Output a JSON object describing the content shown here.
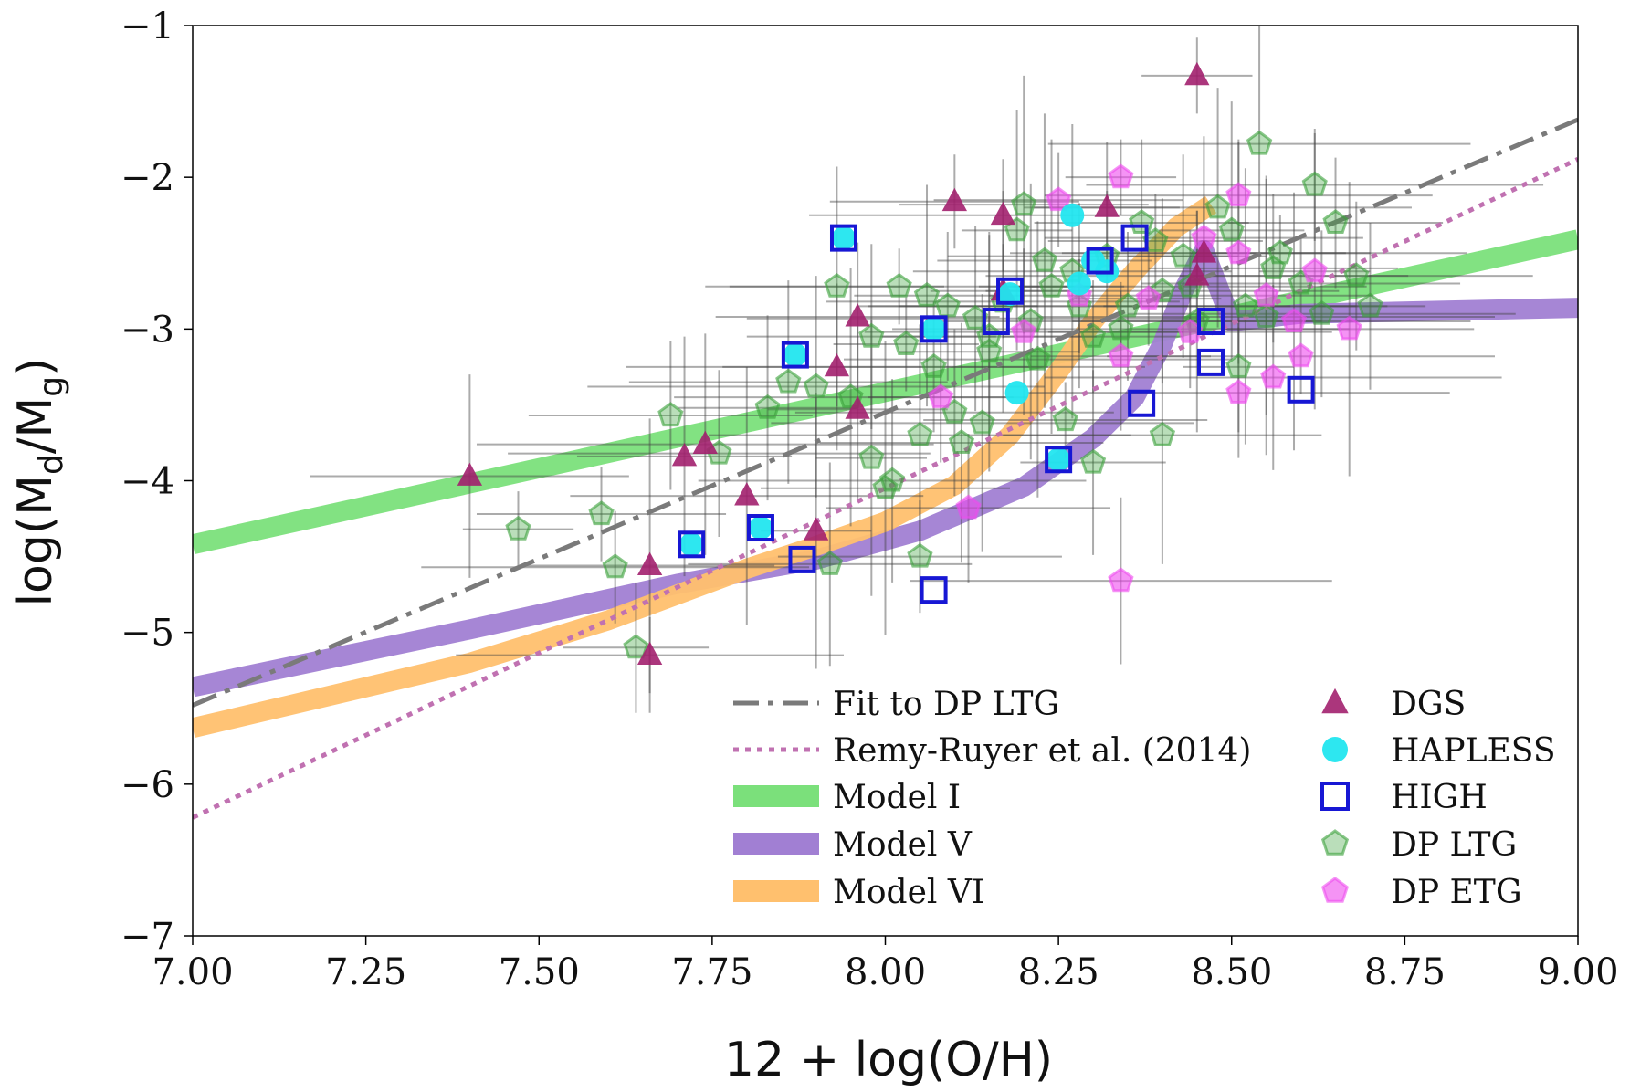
{
  "chart_data": {
    "type": "scatter",
    "title": "",
    "xlabel": "12 + log(O/H)",
    "ylabel": "log(M_d/M_g)",
    "xlabel_text": "12 + log(O/H)",
    "ylabel_main": "log(M",
    "ylabel_sub_d": "d",
    "ylabel_mid": "/M",
    "ylabel_sub_g": "g",
    "ylabel_close": ")",
    "xlim": [
      7.0,
      9.0
    ],
    "ylim": [
      -7.0,
      -1.0
    ],
    "xticks": [
      7.0,
      7.25,
      7.5,
      7.75,
      8.0,
      8.25,
      8.5,
      8.75,
      9.0
    ],
    "xtick_labels": [
      "7.00",
      "7.25",
      "7.50",
      "7.75",
      "8.00",
      "8.25",
      "8.50",
      "8.75",
      "9.00"
    ],
    "yticks": [
      -1,
      -2,
      -3,
      -4,
      -5,
      -6,
      -7
    ],
    "ytick_labels": [
      "−1",
      "−2",
      "−3",
      "−4",
      "−5",
      "−6",
      "−7"
    ],
    "grid": false,
    "legend_position": "lower-right",
    "lines": [
      {
        "name": "Fit to DP LTG",
        "style": "dashdot",
        "color": "#7a7a7a",
        "x": [
          7.0,
          9.0
        ],
        "y": [
          -5.48,
          -1.62
        ]
      },
      {
        "name": "Remy-Ruyer et al. (2014)",
        "style": "dotted",
        "color": "#c071b1",
        "x": [
          7.0,
          9.0
        ],
        "y": [
          -6.22,
          -1.88
        ]
      }
    ],
    "bands": [
      {
        "name": "Model I",
        "color": "#7be07b",
        "x": [
          7.0,
          9.0
        ],
        "y": [
          -4.42,
          -2.41
        ]
      },
      {
        "name": "Model V",
        "color": "#a17fd3",
        "x": [
          7.0,
          7.4,
          7.7,
          7.9,
          8.05,
          8.2,
          8.3,
          8.36,
          8.4,
          8.43,
          8.46,
          8.5,
          8.6,
          8.8,
          9.0
        ],
        "y": [
          -5.36,
          -4.98,
          -4.68,
          -4.52,
          -4.33,
          -4.04,
          -3.72,
          -3.45,
          -3.1,
          -2.75,
          -2.48,
          -2.95,
          -2.9,
          -2.88,
          -2.86
        ]
      },
      {
        "name": "Model VI",
        "color": "#ffc06e",
        "x": [
          7.0,
          7.4,
          7.6,
          7.8,
          7.9,
          8.0,
          8.1,
          8.18,
          8.25,
          8.3,
          8.36,
          8.42,
          8.47
        ],
        "y": [
          -5.63,
          -5.2,
          -4.92,
          -4.58,
          -4.43,
          -4.27,
          -4.03,
          -3.7,
          -3.28,
          -2.95,
          -2.62,
          -2.33,
          -2.18
        ]
      }
    ],
    "series": [
      {
        "name": "DGS",
        "marker": "triangle",
        "color": "#a2206e",
        "x": [
          8.45,
          8.1,
          8.17,
          8.32,
          7.96,
          7.93,
          7.96,
          7.4,
          7.74,
          7.71,
          7.8,
          7.9,
          7.66,
          7.66,
          8.17,
          8.46,
          8.45
        ],
        "y": [
          -1.33,
          -2.16,
          -2.25,
          -2.2,
          -2.92,
          -3.25,
          -3.53,
          -3.97,
          -3.76,
          -3.84,
          -4.1,
          -4.33,
          -4.56,
          -5.15,
          -2.75,
          -2.5,
          -2.65
        ]
      },
      {
        "name": "HAPLESS",
        "marker": "circle",
        "color": "#22e6ef",
        "x": [
          7.94,
          7.87,
          8.07,
          7.72,
          7.82,
          8.18,
          8.19,
          8.27,
          8.3,
          8.32,
          8.25,
          8.28
        ],
        "y": [
          -2.4,
          -3.17,
          -3.0,
          -4.42,
          -4.31,
          -2.77,
          -3.42,
          -2.25,
          -2.55,
          -2.62,
          -3.86,
          -2.7
        ]
      },
      {
        "name": "HIGH",
        "marker": "square",
        "color": "#1717d4",
        "x": [
          7.94,
          7.87,
          8.07,
          7.72,
          7.82,
          7.88,
          8.07,
          8.18,
          8.16,
          8.25,
          8.31,
          8.36,
          8.37,
          8.47,
          8.47,
          8.6
        ],
        "y": [
          -2.4,
          -3.17,
          -3.0,
          -4.42,
          -4.31,
          -4.52,
          -4.72,
          -2.75,
          -2.95,
          -3.86,
          -2.55,
          -2.4,
          -3.49,
          -2.95,
          -3.22,
          -3.4
        ]
      },
      {
        "name": "DP LTG",
        "marker": "pentagon",
        "color": "#3aa03a",
        "x": [
          7.47,
          7.59,
          7.61,
          7.64,
          7.69,
          7.76,
          7.83,
          7.86,
          7.9,
          7.93,
          7.95,
          7.98,
          8.0,
          8.02,
          8.03,
          8.05,
          8.07,
          8.09,
          8.1,
          8.13,
          8.15,
          8.17,
          8.19,
          8.2,
          8.22,
          8.24,
          8.26,
          8.28,
          8.3,
          8.32,
          8.35,
          8.37,
          8.4,
          8.43,
          8.45,
          8.48,
          8.5,
          8.52,
          8.54,
          8.57,
          8.6,
          8.62,
          8.65,
          8.68,
          8.7,
          7.98,
          8.01,
          8.06,
          8.11,
          8.14,
          8.21,
          8.27,
          8.34,
          8.39,
          8.44,
          8.51,
          8.56,
          8.63,
          8.3,
          7.92,
          8.05,
          8.15,
          8.4,
          8.55,
          8.23
        ],
        "y": [
          -4.32,
          -4.22,
          -4.57,
          -5.1,
          -3.57,
          -3.82,
          -3.52,
          -3.35,
          -3.38,
          -2.72,
          -3.45,
          -3.85,
          -4.05,
          -2.72,
          -3.1,
          -4.5,
          -3.25,
          -2.85,
          -3.55,
          -2.93,
          -3.05,
          -2.82,
          -2.35,
          -2.18,
          -3.2,
          -2.72,
          -3.6,
          -2.85,
          -3.05,
          -2.52,
          -2.85,
          -2.3,
          -2.75,
          -2.52,
          -2.95,
          -2.2,
          -2.35,
          -2.85,
          -1.78,
          -2.5,
          -2.7,
          -2.05,
          -2.3,
          -2.65,
          -2.85,
          -3.05,
          -4.0,
          -2.78,
          -3.75,
          -3.62,
          -2.95,
          -2.62,
          -3.0,
          -2.42,
          -2.72,
          -3.25,
          -2.6,
          -2.9,
          -3.88,
          -4.55,
          -3.7,
          -3.15,
          -3.7,
          -2.92,
          -2.55
        ]
      },
      {
        "name": "DP ETG",
        "marker": "pentagon",
        "color": "#ef4bef",
        "x": [
          8.34,
          8.25,
          8.51,
          8.08,
          8.12,
          8.34,
          8.28,
          8.46,
          8.51,
          8.55,
          8.59,
          8.62,
          8.67,
          8.6,
          8.38,
          8.44,
          8.51,
          8.34,
          8.2,
          8.56
        ],
        "y": [
          -2.0,
          -2.15,
          -2.12,
          -3.45,
          -4.18,
          -4.66,
          -2.78,
          -2.4,
          -2.5,
          -2.78,
          -2.95,
          -2.62,
          -3.0,
          -3.18,
          -2.8,
          -3.02,
          -3.42,
          -3.18,
          -3.02,
          -3.32
        ]
      }
    ],
    "legend_left": [
      "Fit to DP LTG",
      "Remy-Ruyer et al. (2014)",
      "Model I",
      "Model V",
      "Model VI"
    ],
    "legend_right": [
      "DGS",
      "HAPLESS",
      "HIGH",
      "DP LTG",
      "DP ETG"
    ]
  }
}
